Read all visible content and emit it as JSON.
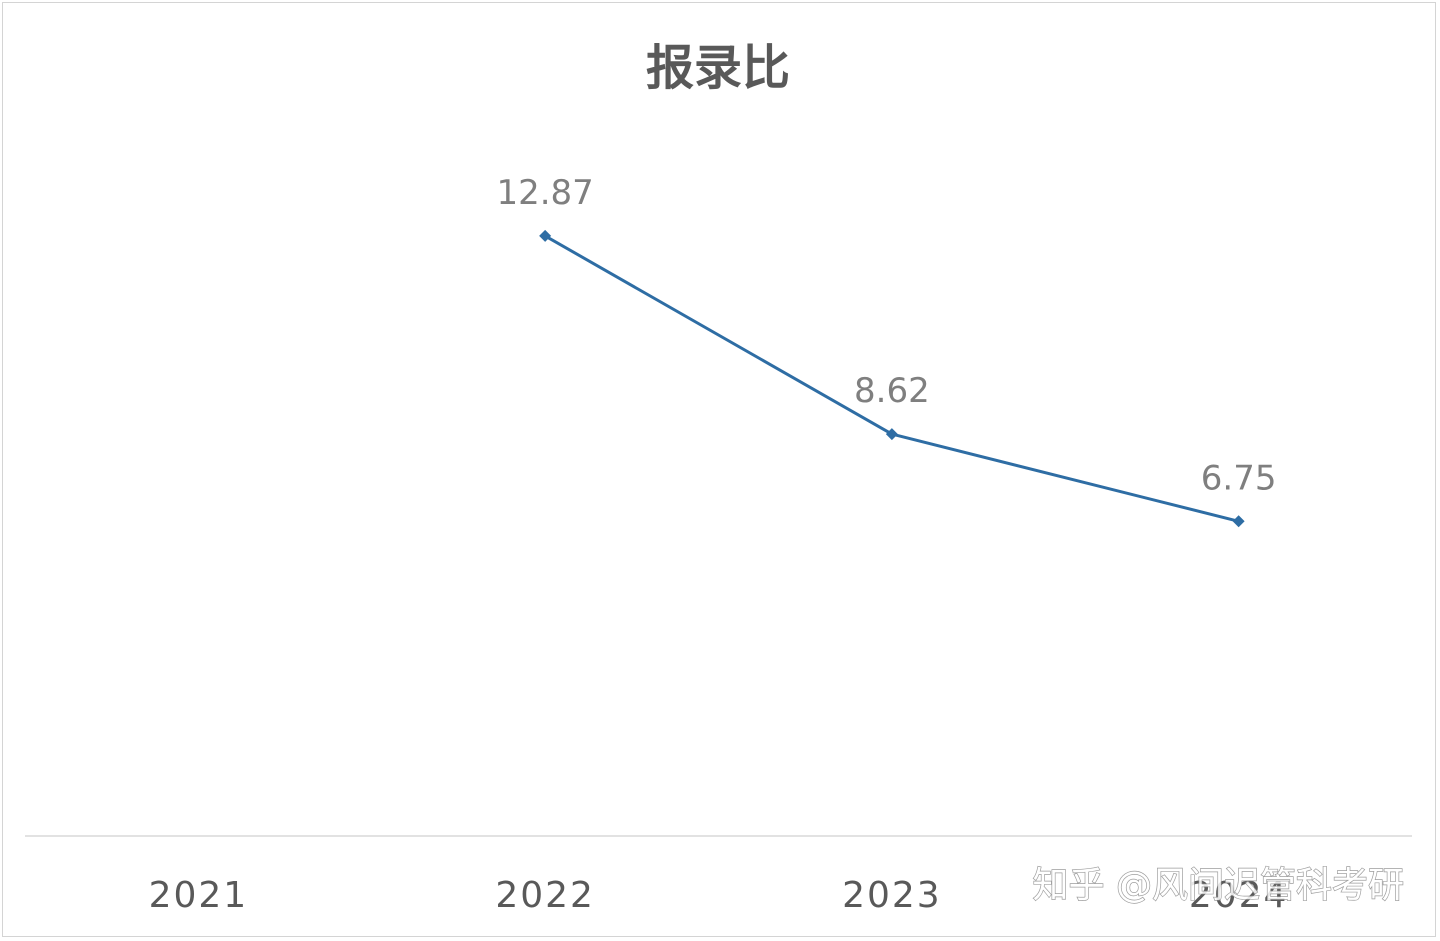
{
  "chart_data": {
    "type": "line",
    "title": "报录比",
    "categories": [
      "2021",
      "2022",
      "2023",
      "2024"
    ],
    "series": [
      {
        "values": [
          null,
          12.87,
          8.62,
          6.75
        ],
        "color": "#2e6da4",
        "marker": "diamond"
      }
    ],
    "data_labels": [
      "",
      "12.87",
      "8.62",
      "6.75"
    ],
    "ylim": [
      0,
      16
    ],
    "grid": false,
    "legend": "none",
    "axis_color": "#d9d9d9"
  },
  "watermark": {
    "text": "知乎 @风间迟管科考研"
  }
}
